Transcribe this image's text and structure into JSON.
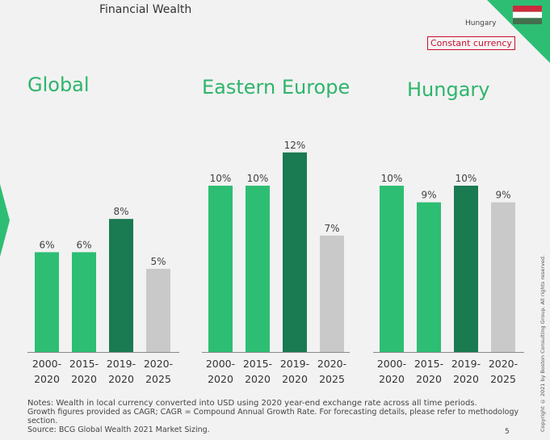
{
  "header": {
    "title": "Financial Wealth"
  },
  "badge": {
    "country": "Hungary",
    "currency": "Constant currency"
  },
  "colors": {
    "green": "#2dbe74",
    "dark_green": "#1a7a52",
    "grey": "#c9c9c9",
    "title_green": "#2db56b"
  },
  "chart_data": [
    {
      "type": "bar",
      "title": "Global",
      "categories": [
        "2000-2020",
        "2015-2020",
        "2019-2020",
        "2020-2025"
      ],
      "values": [
        6,
        6,
        8,
        5
      ],
      "labels": [
        "6%",
        "6%",
        "8%",
        "5%"
      ]
    },
    {
      "type": "bar",
      "title": "Eastern Europe",
      "categories": [
        "2000-2020",
        "2015-2020",
        "2019-2020",
        "2020-2025"
      ],
      "values": [
        10,
        10,
        12,
        7
      ],
      "labels": [
        "10%",
        "10%",
        "12%",
        "7%"
      ]
    },
    {
      "type": "bar",
      "title": "Hungary",
      "categories": [
        "2000-2020",
        "2015-2020",
        "2019-2020",
        "2020-2025"
      ],
      "values": [
        10,
        9,
        10,
        9
      ],
      "labels": [
        "10%",
        "9%",
        "10%",
        "9%"
      ]
    }
  ],
  "footer": {
    "notes": "Notes: Wealth in local currency converted into USD using 2020 year-end exchange rate across all time periods.",
    "growth": "Growth figures provided as CAGR; CAGR = Compound Annual Growth Rate. For forecasting details, please refer to methodology section.",
    "source": "Source: BCG Global Wealth 2021 Market Sizing.",
    "page": "5",
    "copyright": "Copyright © 2021 by Boston Consulting Group. All rights reserved."
  }
}
